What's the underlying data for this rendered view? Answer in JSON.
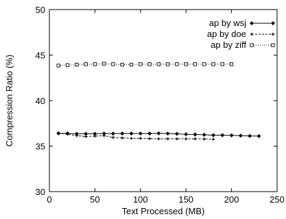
{
  "chart_data": {
    "type": "line",
    "title": "",
    "xlabel": "Text Processed (MB)",
    "ylabel": "Compression Ratio (%)",
    "xlim": [
      0,
      250
    ],
    "ylim": [
      30,
      50
    ],
    "xticks": [
      0,
      50,
      100,
      150,
      200,
      250
    ],
    "yticks": [
      30,
      35,
      40,
      45,
      50
    ],
    "grid": false,
    "legend_position": "top-right",
    "series": [
      {
        "name": "ap by wsj",
        "marker": "diamond",
        "line": "solid",
        "color": "#000000",
        "x": [
          10,
          20,
          30,
          40,
          50,
          60,
          70,
          80,
          90,
          100,
          110,
          120,
          130,
          140,
          150,
          160,
          170,
          180,
          190,
          200,
          210,
          220,
          230
        ],
        "y": [
          36.4,
          36.4,
          36.35,
          36.35,
          36.35,
          36.38,
          36.38,
          36.38,
          36.38,
          36.38,
          36.38,
          36.4,
          36.38,
          36.35,
          36.3,
          36.28,
          36.25,
          36.2,
          36.2,
          36.18,
          36.15,
          36.12,
          36.1
        ]
      },
      {
        "name": "ap by doe",
        "marker": "plus",
        "line": "dashed",
        "color": "#000000",
        "x": [
          10,
          20,
          30,
          40,
          50,
          60,
          70,
          80,
          90,
          100,
          110,
          120,
          130,
          140,
          150,
          160,
          170,
          180
        ],
        "y": [
          36.45,
          36.3,
          36.15,
          36.05,
          36.1,
          36.15,
          35.95,
          35.9,
          35.85,
          35.85,
          35.82,
          35.8,
          35.8,
          35.8,
          35.8,
          35.8,
          35.78,
          35.75
        ]
      },
      {
        "name": "ap by ziff",
        "marker": "square",
        "line": "dotted",
        "color": "#000000",
        "x": [
          10,
          20,
          30,
          40,
          50,
          60,
          70,
          80,
          90,
          100,
          110,
          120,
          130,
          140,
          150,
          160,
          170,
          180,
          190,
          200
        ],
        "y": [
          43.85,
          43.9,
          43.95,
          44.0,
          44.0,
          44.05,
          44.0,
          43.95,
          43.95,
          44.0,
          44.0,
          44.0,
          44.0,
          44.0,
          44.0,
          44.0,
          44.0,
          44.0,
          44.0,
          44.0
        ]
      }
    ]
  }
}
